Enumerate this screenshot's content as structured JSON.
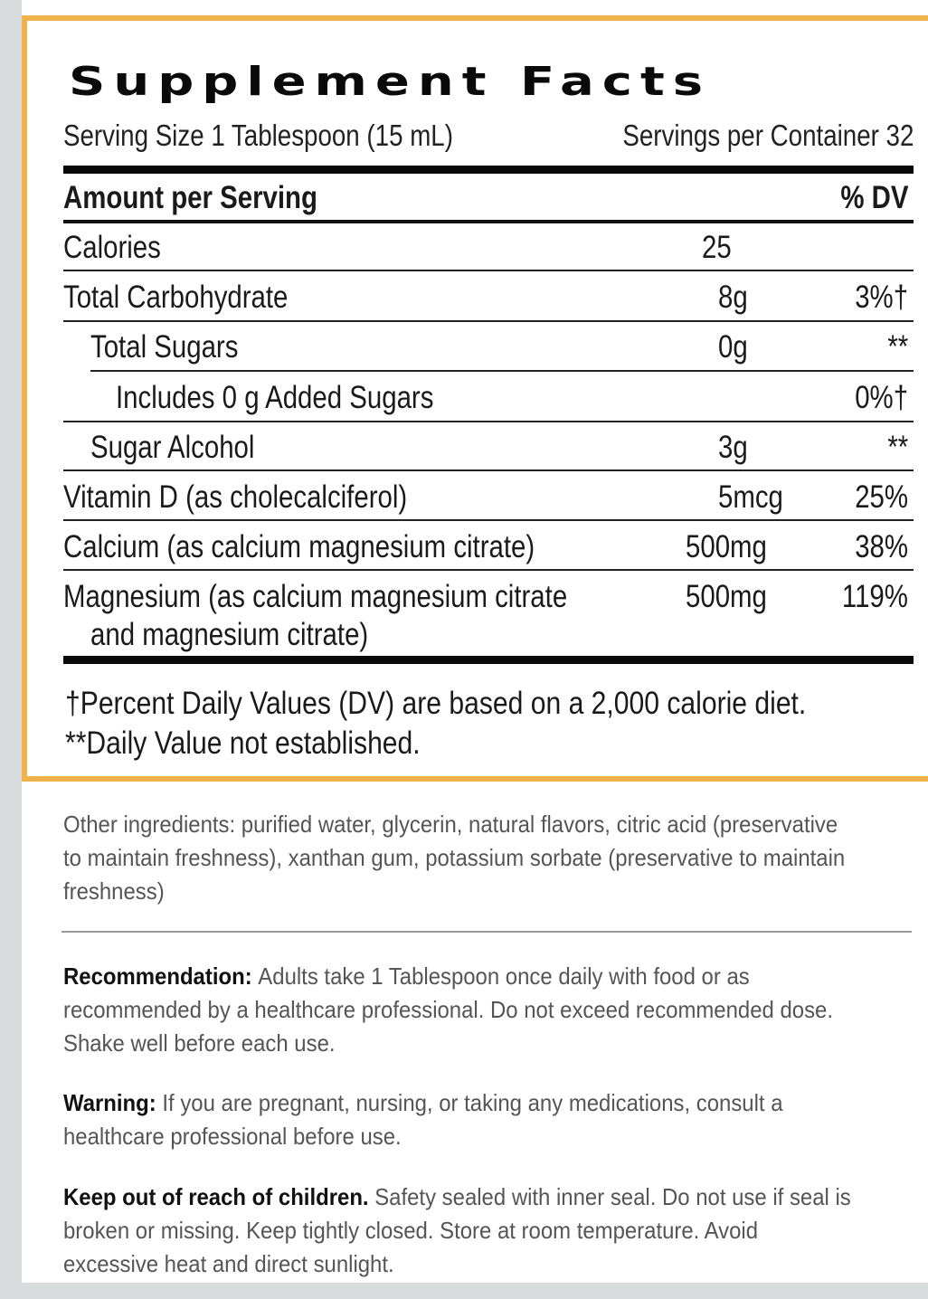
{
  "title": "Supplement Facts",
  "serving_size": "Serving Size 1 Tablespoon (15 mL)",
  "servings_per_container": "Servings per Container 32",
  "header": {
    "amount_label": "Amount per Serving",
    "dv_label": "% DV"
  },
  "rows": [
    {
      "name": "Calories",
      "amount": "25",
      "dv": ""
    },
    {
      "name": "Total Carbohydrate",
      "amount": "8g",
      "dv": "3%†"
    },
    {
      "name": "Total Sugars",
      "amount": "0g",
      "dv": "**"
    },
    {
      "name": "Includes 0 g Added Sugars",
      "amount": "",
      "dv": "0%†"
    },
    {
      "name": "Sugar Alcohol",
      "amount": "3g",
      "dv": "**"
    },
    {
      "name": "Vitamin D (as cholecalciferol)",
      "amount": "5mcg",
      "dv": "25%"
    },
    {
      "name": "Calcium (as calcium magnesium citrate)",
      "amount": "500mg",
      "dv": "38%"
    },
    {
      "name": "Magnesium (as calcium magnesium citrate",
      "name_line2": "and magnesium citrate)",
      "amount": "500mg",
      "dv": "119%"
    }
  ],
  "footnote_dv": "†Percent Daily Values (DV) are based on a 2,000 calorie diet.",
  "footnote_na": "**Daily Value not established.",
  "other_ingredients": "Other ingredients: purified water, glycerin, natural flavors, citric acid (preservative to maintain freshness), xanthan gum, potassium sorbate (preservative to maintain freshness)",
  "recommendation": {
    "label": "Recommendation:",
    "text": "Adults take 1 Tablespoon once daily with food or as recommended by a healthcare professional. Do not exceed recommended dose. Shake well before each use."
  },
  "warning": {
    "label": "Warning:",
    "text": "If you are pregnant, nursing, or taking any medications, consult a healthcare professional before use."
  },
  "keep_out": {
    "label": "Keep out of reach of children.",
    "text": "Safety sealed with inner seal. Do not use if seal is broken or missing. Keep tightly closed. Store at room temperature. Avoid excessive heat and direct sunlight."
  },
  "colors": {
    "panel_border": "#f0b34c",
    "text": "#111111",
    "body_text": "#555555",
    "background": "#d9dcdd"
  }
}
